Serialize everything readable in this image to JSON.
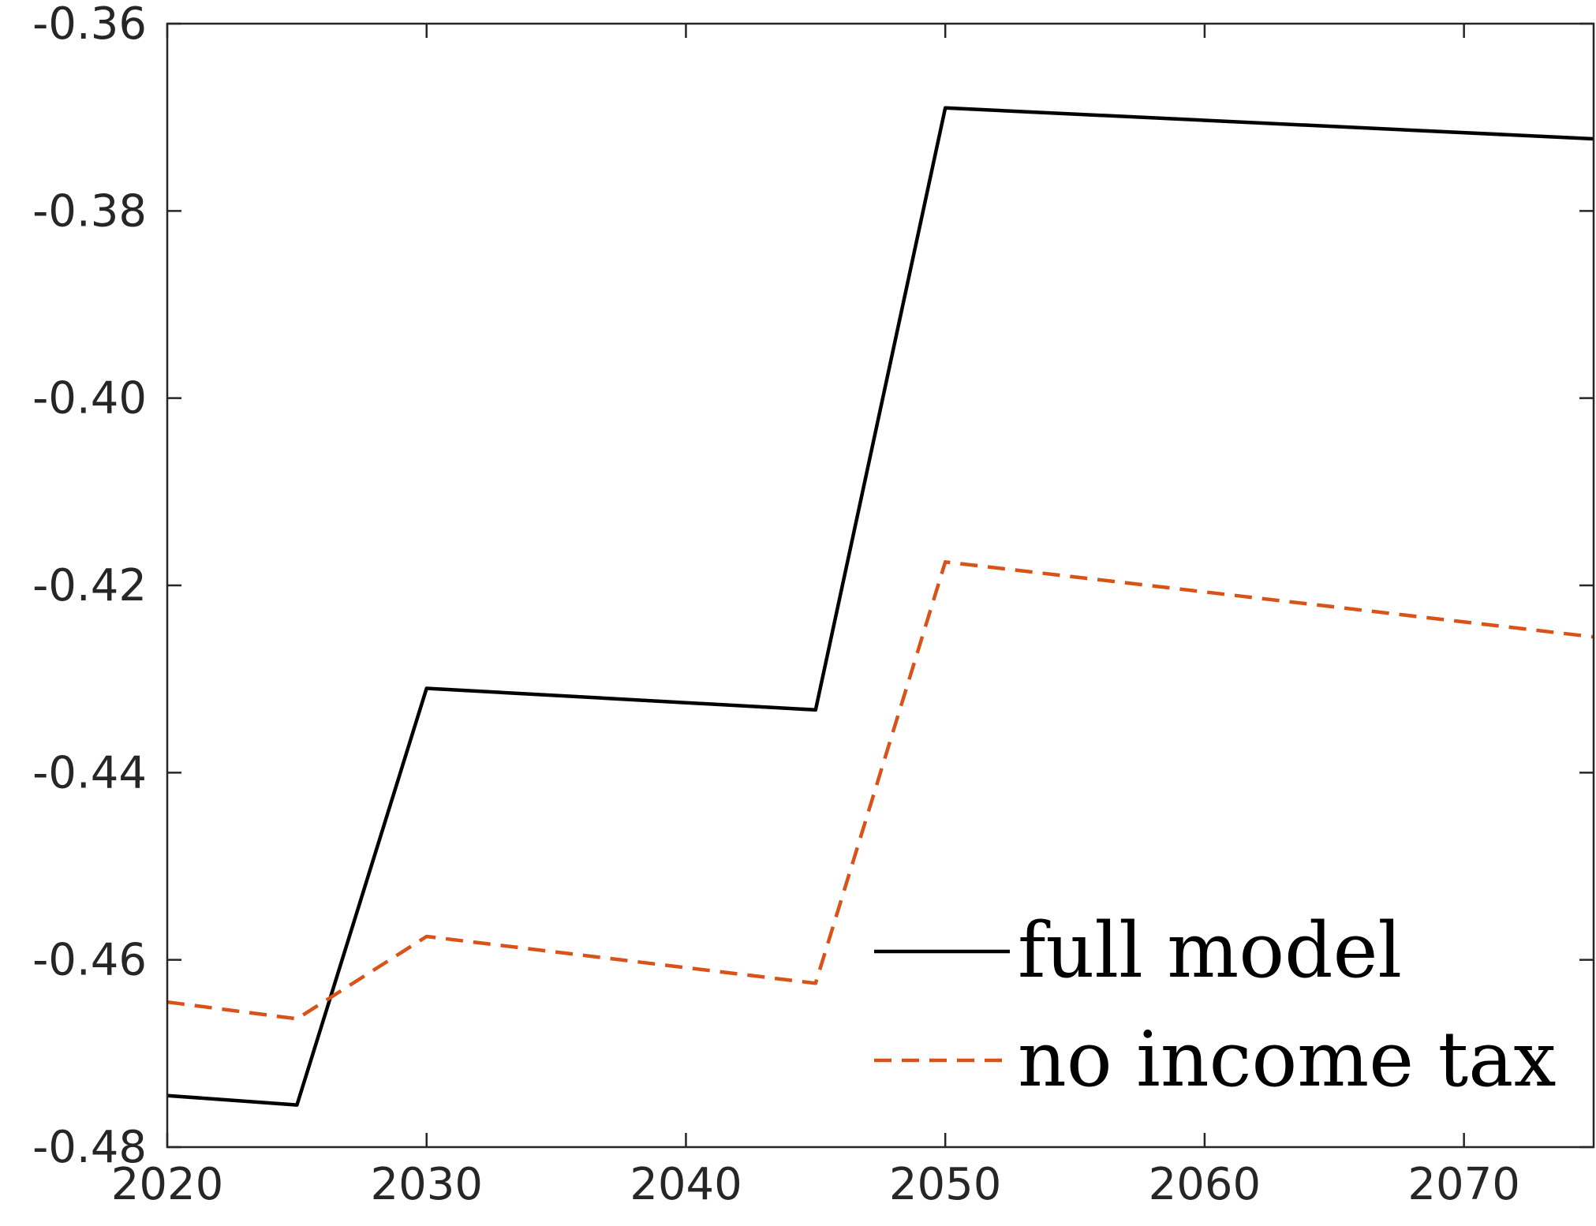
{
  "chart_data": {
    "type": "line",
    "title": "",
    "xlabel": "",
    "ylabel": "",
    "xlim": [
      2020,
      2075
    ],
    "ylim": [
      -0.48,
      -0.36
    ],
    "x_ticks": [
      2020,
      2030,
      2040,
      2050,
      2060,
      2070
    ],
    "x_tick_labels": [
      "2020",
      "2030",
      "2040",
      "2050",
      "2060",
      "2070"
    ],
    "y_ticks": [
      -0.36,
      -0.38,
      -0.4,
      -0.42,
      -0.44,
      -0.46,
      -0.48
    ],
    "y_tick_labels": [
      "-0.36",
      "-0.38",
      "-0.40",
      "-0.42",
      "-0.44",
      "-0.46",
      "-0.48"
    ],
    "grid": false,
    "legend_position": "bottom-right",
    "x": [
      2020,
      2025,
      2030,
      2045,
      2050,
      2075
    ],
    "series": [
      {
        "name": "full model",
        "color": "#000000",
        "dash": "solid",
        "values": [
          -0.4745,
          -0.4755,
          -0.431,
          -0.4333,
          -0.369,
          -0.3723
        ]
      },
      {
        "name": "no income tax",
        "color": "#D95319",
        "dash": "dashed",
        "values": [
          -0.4645,
          -0.4663,
          -0.4575,
          -0.4625,
          -0.4175,
          -0.4255
        ]
      }
    ]
  }
}
